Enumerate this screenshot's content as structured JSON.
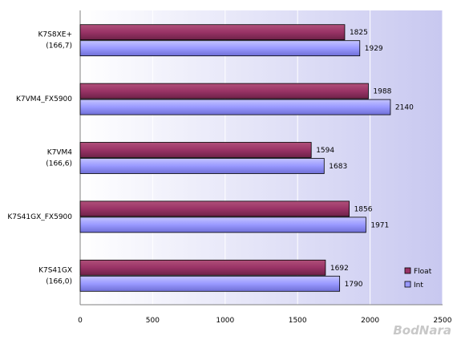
{
  "chart_data": {
    "type": "bar",
    "orientation": "horizontal",
    "categories": [
      [
        "K7S8XE+",
        "(166,7)"
      ],
      [
        "K7VM4_FX5900"
      ],
      [
        "K7VM4",
        "(166,6)"
      ],
      [
        "K7S41GX_FX5900"
      ],
      [
        "K7S41GX",
        "(166,0)"
      ]
    ],
    "series": [
      {
        "name": "Float",
        "color": "#993366",
        "values": [
          1825,
          1988,
          1594,
          1856,
          1692
        ]
      },
      {
        "name": "Int",
        "color": "#9999ff",
        "values": [
          1929,
          2140,
          1683,
          1971,
          1790
        ]
      }
    ],
    "xlim": [
      0,
      2500
    ],
    "xticks": [
      0,
      500,
      1000,
      1500,
      2000,
      2500
    ],
    "grid": "vertical",
    "legend_position": "bottom-right",
    "title": "",
    "xlabel": "",
    "ylabel": ""
  },
  "watermark": "BodNara",
  "colors": {
    "plot_bg_top": "#c8c8f0",
    "plot_bg_bottom": "#ffffff",
    "grid": "#ffffff"
  }
}
